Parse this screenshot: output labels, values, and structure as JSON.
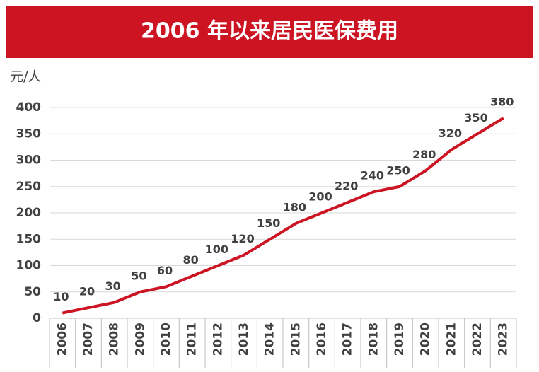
{
  "chart_data": {
    "type": "line",
    "title": "2006 年以来居民医保费用",
    "y_label": "元/人",
    "categories": [
      "2006",
      "2007",
      "2008",
      "2009",
      "2010",
      "2011",
      "2012",
      "2013",
      "2014",
      "2015",
      "2016",
      "2017",
      "2018",
      "2019",
      "2020",
      "2021",
      "2022",
      "2023"
    ],
    "series": [
      {
        "name": "居民医保费用",
        "color": "#cc1423",
        "values": [
          10,
          20,
          30,
          50,
          60,
          80,
          100,
          120,
          150,
          180,
          200,
          220,
          240,
          250,
          280,
          320,
          350,
          380
        ]
      }
    ],
    "ylim": [
      0,
      400
    ],
    "yticks": [
      0,
      50,
      100,
      150,
      200,
      250,
      300,
      350,
      400
    ],
    "grid": true
  }
}
